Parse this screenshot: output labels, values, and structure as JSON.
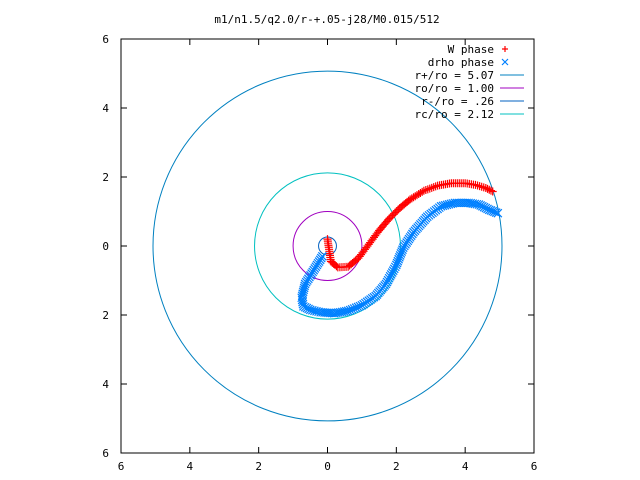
{
  "chart_data": {
    "type": "line",
    "title": "m1/n1.5/q2.0/r-+.05-j28/M0.015/512",
    "xlabel": "",
    "ylabel": "",
    "xlim": [
      -6,
      6
    ],
    "ylim": [
      -6,
      6
    ],
    "x_ticks": [
      -6,
      -4,
      -2,
      0,
      2,
      4,
      6
    ],
    "y_ticks": [
      -6,
      -4,
      -2,
      0,
      2,
      4,
      6
    ],
    "x_tick_labels": [
      "6",
      "4",
      "2",
      "0",
      "2",
      "4",
      "6"
    ],
    "y_tick_labels": [
      "6",
      "4",
      "2",
      "0",
      "2",
      "4",
      "6"
    ],
    "grid": false,
    "legend_position": "top-right",
    "series": [
      {
        "name": "W phase",
        "kind": "points",
        "marker": "plus",
        "color": "#ff0000",
        "x": [
          0.0,
          0.1,
          0.3,
          0.6,
          0.9,
          1.2,
          1.5,
          1.8,
          2.1,
          2.4,
          2.8,
          3.2,
          3.6,
          4.0,
          4.3,
          4.6,
          4.8
        ],
        "y": [
          0.2,
          -0.45,
          -0.62,
          -0.6,
          -0.35,
          0.05,
          0.45,
          0.8,
          1.1,
          1.35,
          1.6,
          1.75,
          1.82,
          1.82,
          1.77,
          1.68,
          1.58
        ]
      },
      {
        "name": "drho phase",
        "kind": "points",
        "marker": "x",
        "color": "#0080ff",
        "x": [
          -0.15,
          -0.4,
          -0.65,
          -0.75,
          -0.7,
          -0.5,
          -0.2,
          0.2,
          0.6,
          1.0,
          1.4,
          1.7,
          2.0,
          2.2,
          2.5,
          2.9,
          3.3,
          3.7,
          4.1,
          4.4,
          4.7,
          4.95
        ],
        "y": [
          -0.3,
          -0.7,
          -1.1,
          -1.5,
          -1.75,
          -1.85,
          -1.92,
          -1.95,
          -1.88,
          -1.72,
          -1.45,
          -1.1,
          -0.55,
          -0.05,
          0.4,
          0.85,
          1.15,
          1.25,
          1.25,
          1.2,
          1.05,
          0.95
        ]
      },
      {
        "name": "r+/ro = 5.07",
        "kind": "circle",
        "radius": 5.07,
        "color": "#0080c0"
      },
      {
        "name": "ro/ro = 1.00",
        "kind": "circle",
        "radius": 1.0,
        "color": "#a000c0"
      },
      {
        "name": "r-/ro = .26",
        "kind": "circle",
        "radius": 0.26,
        "color": "#0060c0"
      },
      {
        "name": "rc/ro = 2.12",
        "kind": "circle",
        "radius": 2.12,
        "color": "#00c0c0"
      }
    ]
  }
}
